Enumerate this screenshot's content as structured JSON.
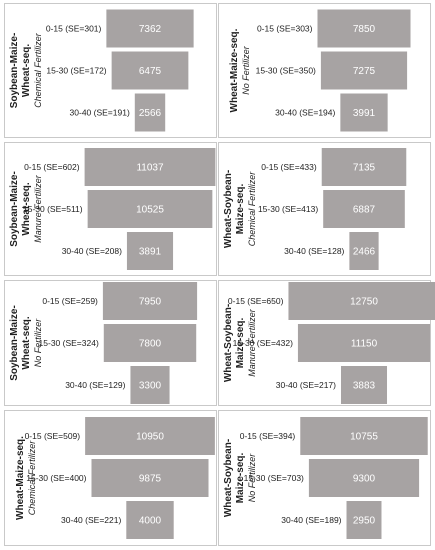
{
  "colors": {
    "bar": "#a7a3a3",
    "bar_value_text": "#ffffff",
    "panel_border": "#c9c9c9"
  },
  "chart_data": [
    {
      "type": "bar",
      "orientation": "horizontal-funnel",
      "title": "Soybean-Maize-Wheat-seq.",
      "subtitle": "Chemical Fertilizer",
      "categories": [
        "0-15 (SE=301)",
        "15-30 (SE=172)",
        "30-40 (SE=191)"
      ],
      "values": [
        7362,
        6475,
        2566
      ]
    },
    {
      "type": "bar",
      "orientation": "horizontal-funnel",
      "title": "Wheat-Maize-seq.",
      "subtitle": "No Fertilizer",
      "categories": [
        "0-15 (SE=303)",
        "15-30 (SE=350)",
        "30-40 (SE=194)"
      ],
      "values": [
        7850,
        7275,
        3991
      ]
    },
    {
      "type": "bar",
      "orientation": "horizontal-funnel",
      "title": "Soybean-Maize-Wheat-seq.",
      "subtitle": "Manure Fertilizer",
      "categories": [
        "0-15 (SE=602)",
        "15-30 (SE=511)",
        "30-40 (SE=208)"
      ],
      "values": [
        11037,
        10525,
        3891
      ]
    },
    {
      "type": "bar",
      "orientation": "horizontal-funnel",
      "title": "Wheat-Soybean-Maize-seq.",
      "subtitle": "Chemical Fertilizer",
      "categories": [
        "0-15 (SE=433)",
        "15-30 (SE=413)",
        "30-40 (SE=128)"
      ],
      "values": [
        7135,
        6887,
        2466
      ]
    },
    {
      "type": "bar",
      "orientation": "horizontal-funnel",
      "title": "Soybean-Maize-Wheat-seq.",
      "subtitle": "No Fertilizer",
      "categories": [
        "0-15 (SE=259)",
        "15-30 (SE=324)",
        "30-40 (SE=129)"
      ],
      "values": [
        7950,
        7800,
        3300
      ]
    },
    {
      "type": "bar",
      "orientation": "horizontal-funnel",
      "title": "Wheat-Soybean-Maize-seq.",
      "subtitle": "Manure Fertilizer",
      "categories": [
        "0-15 (SE=650)",
        "15-30 (SE=432)",
        "30-40 (SE=217)"
      ],
      "values": [
        12750,
        11150,
        3883
      ]
    },
    {
      "type": "bar",
      "orientation": "horizontal-funnel",
      "title": "Wheat-Maize-seq.",
      "subtitle": "Chemical Fertilizer",
      "categories": [
        "0-15 (SE=509)",
        "15-30 (SE=400)",
        "30-40 (SE=221)"
      ],
      "values": [
        10950,
        9875,
        4000
      ]
    },
    {
      "type": "bar",
      "orientation": "horizontal-funnel",
      "title": "Wheat-Soybean-Maize-seq.",
      "subtitle": "No Fertilizer",
      "categories": [
        "0-15 (SE=394)",
        "15-30 (SE=703)",
        "30-40 (SE=189)"
      ],
      "values": [
        10755,
        9300,
        2950
      ]
    }
  ]
}
